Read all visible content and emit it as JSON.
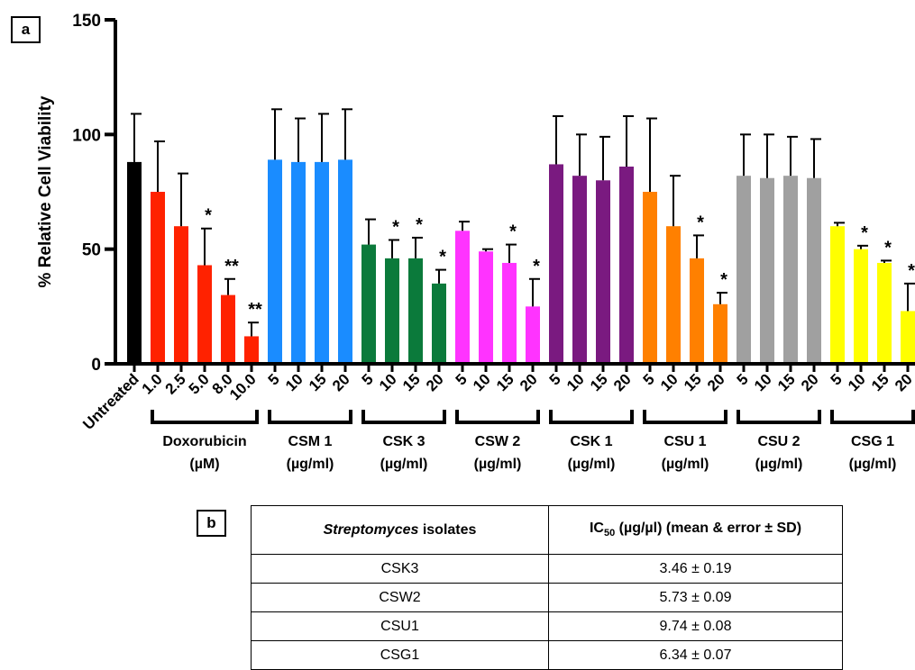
{
  "panel_a_label": "a",
  "panel_b_label": "b",
  "colors": {
    "untreated": "#000000",
    "doxorubicin": "#ff2200",
    "csm1": "#1a8cff",
    "csk3": "#0b7a3b",
    "csw2": "#ff33ff",
    "csk1": "#7a1a80",
    "csu1": "#ff8000",
    "csu2": "#a0a0a0",
    "csg1": "#ffff00"
  },
  "chart_data": {
    "type": "bar",
    "ylabel": "% Relative Cell Viability",
    "ylim": [
      0,
      150
    ],
    "yticks": [
      0,
      50,
      100,
      150
    ],
    "legend": "none",
    "grid": false,
    "groups": [
      {
        "name": "",
        "unit": "",
        "color_key": "untreated",
        "bars": [
          {
            "label": "Untreated",
            "value": 88,
            "err": 21,
            "sig": ""
          }
        ]
      },
      {
        "name": "Doxorubicin",
        "unit": "(µM)",
        "color_key": "doxorubicin",
        "bars": [
          {
            "label": "1.0",
            "value": 75,
            "err": 22,
            "sig": ""
          },
          {
            "label": "2.5",
            "value": 60,
            "err": 23,
            "sig": ""
          },
          {
            "label": "5.0",
            "value": 43,
            "err": 16,
            "sig": "*"
          },
          {
            "label": "8.0",
            "value": 30,
            "err": 7,
            "sig": "**"
          },
          {
            "label": "10.0",
            "value": 12,
            "err": 6,
            "sig": "**"
          }
        ]
      },
      {
        "name": "CSM 1",
        "unit": "(µg/ml)",
        "color_key": "csm1",
        "bars": [
          {
            "label": "5",
            "value": 89,
            "err": 22,
            "sig": ""
          },
          {
            "label": "10",
            "value": 88,
            "err": 19,
            "sig": ""
          },
          {
            "label": "15",
            "value": 88,
            "err": 21,
            "sig": ""
          },
          {
            "label": "20",
            "value": 89,
            "err": 22,
            "sig": ""
          }
        ]
      },
      {
        "name": "CSK 3",
        "unit": "(µg/ml)",
        "color_key": "csk3",
        "bars": [
          {
            "label": "5",
            "value": 52,
            "err": 11,
            "sig": ""
          },
          {
            "label": "10",
            "value": 46,
            "err": 8,
            "sig": "*"
          },
          {
            "label": "15",
            "value": 46,
            "err": 9,
            "sig": "*"
          },
          {
            "label": "20",
            "value": 35,
            "err": 6,
            "sig": "*"
          }
        ]
      },
      {
        "name": "CSW 2",
        "unit": "(µg/ml)",
        "color_key": "csw2",
        "bars": [
          {
            "label": "5",
            "value": 58,
            "err": 4,
            "sig": ""
          },
          {
            "label": "10",
            "value": 49,
            "err": 1,
            "sig": ""
          },
          {
            "label": "15",
            "value": 44,
            "err": 8,
            "sig": "*"
          },
          {
            "label": "20",
            "value": 25,
            "err": 12,
            "sig": "*"
          }
        ]
      },
      {
        "name": "CSK 1",
        "unit": "(µg/ml)",
        "color_key": "csk1",
        "bars": [
          {
            "label": "5",
            "value": 87,
            "err": 21,
            "sig": ""
          },
          {
            "label": "10",
            "value": 82,
            "err": 18,
            "sig": ""
          },
          {
            "label": "15",
            "value": 80,
            "err": 19,
            "sig": ""
          },
          {
            "label": "20",
            "value": 86,
            "err": 22,
            "sig": ""
          }
        ]
      },
      {
        "name": "CSU 1",
        "unit": "(µg/ml)",
        "color_key": "csu1",
        "bars": [
          {
            "label": "5",
            "value": 75,
            "err": 32,
            "sig": ""
          },
          {
            "label": "10",
            "value": 60,
            "err": 22,
            "sig": ""
          },
          {
            "label": "15",
            "value": 46,
            "err": 10,
            "sig": "*"
          },
          {
            "label": "20",
            "value": 26,
            "err": 5,
            "sig": "*"
          }
        ]
      },
      {
        "name": "CSU 2",
        "unit": "(µg/ml)",
        "color_key": "csu2",
        "bars": [
          {
            "label": "5",
            "value": 82,
            "err": 18,
            "sig": ""
          },
          {
            "label": "10",
            "value": 81,
            "err": 19,
            "sig": ""
          },
          {
            "label": "15",
            "value": 82,
            "err": 17,
            "sig": ""
          },
          {
            "label": "20",
            "value": 81,
            "err": 17,
            "sig": ""
          }
        ]
      },
      {
        "name": "CSG 1",
        "unit": "(µg/ml)",
        "color_key": "csg1",
        "bars": [
          {
            "label": "5",
            "value": 60,
            "err": 1.5,
            "sig": ""
          },
          {
            "label": "10",
            "value": 50,
            "err": 1.5,
            "sig": "*"
          },
          {
            "label": "15",
            "value": 44,
            "err": 1,
            "sig": "*"
          },
          {
            "label": "20",
            "value": 23,
            "err": 12,
            "sig": "*"
          }
        ]
      }
    ]
  },
  "table": {
    "header_isolates_italic": "Streptomyces",
    "header_isolates_rest": " isolates",
    "header_ic": "IC",
    "header_ic_sub": "50",
    "header_ic_rest": " (µg/µl) (mean & error ± SD)",
    "rows": [
      {
        "isolate": "CSK3",
        "ic50": "3.46 ± 0.19"
      },
      {
        "isolate": "CSW2",
        "ic50": "5.73  ± 0.09"
      },
      {
        "isolate": "CSU1",
        "ic50": "9.74  ± 0.08"
      },
      {
        "isolate": "CSG1",
        "ic50": "6.34  ± 0.07"
      }
    ]
  }
}
